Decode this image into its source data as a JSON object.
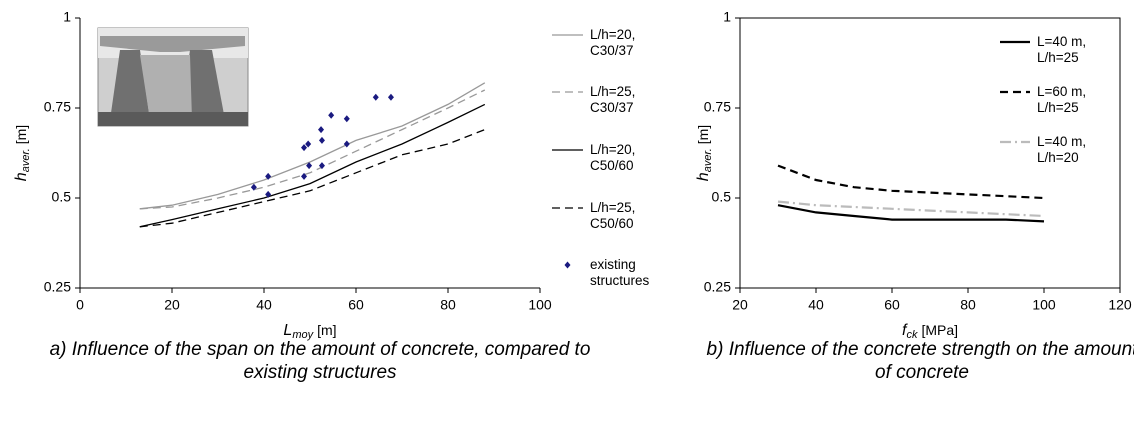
{
  "chart_data": [
    {
      "type": "line",
      "xlabel": {
        "text": "L",
        "sub": "moy",
        "unit": "[m]"
      },
      "ylabel": {
        "text": "h",
        "sub": "aver.",
        "unit": "[m]"
      },
      "xlim": [
        0,
        100
      ],
      "xticks": [
        0,
        20,
        40,
        60,
        80,
        100
      ],
      "ylim": [
        0.25,
        1
      ],
      "yticks": [
        0.25,
        0.5,
        0.75,
        1
      ],
      "frame": false,
      "caption": "a) Influence of the span on the amount of concrete, compared to existing structures",
      "series": [
        {
          "name": "L/h=20, C30/37",
          "color": "#999999",
          "style": "solid",
          "x": [
            13,
            20,
            30,
            40,
            50,
            60,
            70,
            80,
            88
          ],
          "values": [
            0.47,
            0.48,
            0.51,
            0.55,
            0.6,
            0.66,
            0.7,
            0.76,
            0.82
          ]
        },
        {
          "name": "L/h=25, C30/37",
          "color": "#999999",
          "style": "dashed",
          "x": [
            13,
            20,
            30,
            40,
            50,
            60,
            70,
            80,
            88
          ],
          "values": [
            0.47,
            0.475,
            0.5,
            0.53,
            0.57,
            0.63,
            0.69,
            0.75,
            0.8
          ]
        },
        {
          "name": "L/h=20, C50/60",
          "color": "#000000",
          "style": "solid",
          "x": [
            13,
            20,
            30,
            40,
            50,
            60,
            70,
            80,
            88
          ],
          "values": [
            0.42,
            0.44,
            0.47,
            0.5,
            0.54,
            0.6,
            0.65,
            0.71,
            0.76
          ]
        },
        {
          "name": "L/h=25, C50/60",
          "color": "#000000",
          "style": "dashed",
          "x": [
            13,
            20,
            30,
            40,
            50,
            60,
            70,
            80,
            88
          ],
          "values": [
            0.42,
            0.43,
            0.46,
            0.49,
            0.52,
            0.57,
            0.62,
            0.65,
            0.69
          ]
        },
        {
          "name": "existing structures",
          "color": "#1a1a80",
          "style": "markers",
          "x": [
            37.8,
            40.9,
            40.9,
            48.7,
            49.6,
            48.7,
            49.8,
            52.6,
            52.6,
            52.4,
            54.6,
            58,
            58,
            64.3,
            67.6
          ],
          "values": [
            0.53,
            0.56,
            0.51,
            0.64,
            0.65,
            0.56,
            0.59,
            0.59,
            0.66,
            0.69,
            0.73,
            0.65,
            0.72,
            0.78,
            0.78
          ]
        }
      ]
    },
    {
      "type": "line",
      "xlabel": {
        "text": "f",
        "sub": "ck",
        "unit": "[MPa]"
      },
      "ylabel": {
        "text": "h",
        "sub": "aver.",
        "unit": "[m]"
      },
      "xlim": [
        20,
        120
      ],
      "xticks": [
        20,
        40,
        60,
        80,
        100,
        120
      ],
      "ylim": [
        0.25,
        1
      ],
      "yticks": [
        0.25,
        0.5,
        0.75,
        1
      ],
      "frame": true,
      "caption": "b) Influence of the concrete strength on the amount of concrete",
      "series": [
        {
          "name": "L=40 m, L/h=25",
          "color": "#000000",
          "style": "solid",
          "x": [
            30,
            40,
            50,
            60,
            70,
            80,
            90,
            100
          ],
          "values": [
            0.48,
            0.46,
            0.45,
            0.44,
            0.44,
            0.44,
            0.44,
            0.435
          ]
        },
        {
          "name": "L=60 m, L/h=25",
          "color": "#000000",
          "style": "dashed",
          "x": [
            30,
            40,
            50,
            60,
            70,
            80,
            90,
            100
          ],
          "values": [
            0.59,
            0.55,
            0.53,
            0.52,
            0.515,
            0.51,
            0.505,
            0.5
          ]
        },
        {
          "name": "L=40 m, L/h=20",
          "color": "#bbbbbb",
          "style": "dashdot",
          "x": [
            30,
            40,
            50,
            60,
            70,
            80,
            90,
            100
          ],
          "values": [
            0.49,
            0.48,
            0.475,
            0.47,
            0.465,
            0.46,
            0.455,
            0.45
          ]
        }
      ]
    }
  ]
}
